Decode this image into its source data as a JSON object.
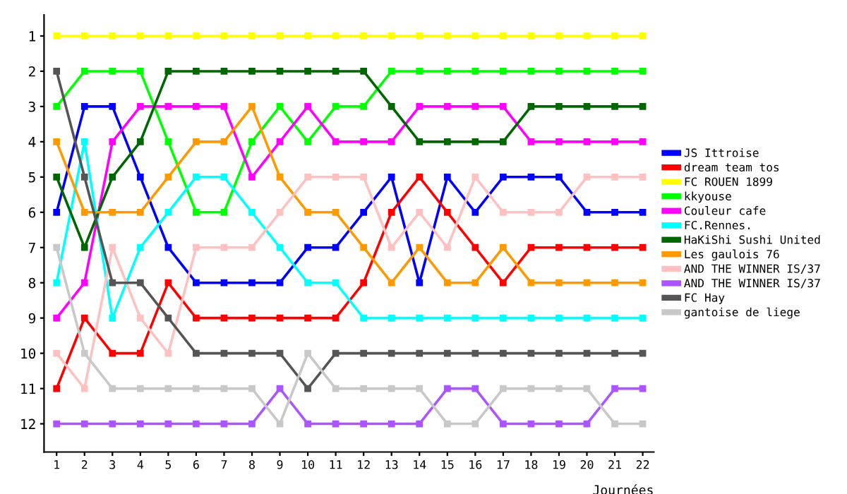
{
  "chart_data": {
    "type": "line",
    "xlabel": "Journées",
    "x": [
      1,
      2,
      3,
      4,
      5,
      6,
      7,
      8,
      9,
      10,
      11,
      12,
      13,
      14,
      15,
      16,
      17,
      18,
      19,
      20,
      21,
      22
    ],
    "xlim": [
      0.55,
      22.4
    ],
    "xticks": [
      1,
      2,
      3,
      4,
      5,
      6,
      7,
      8,
      9,
      10,
      11,
      12,
      13,
      14,
      15,
      16,
      17,
      18,
      19,
      20,
      21,
      22
    ],
    "ylim": [
      12.8,
      0.4
    ],
    "yticks": [
      1,
      2,
      3,
      4,
      5,
      6,
      7,
      8,
      9,
      10,
      11,
      12
    ],
    "marker": "square",
    "line_style": "solid",
    "grid": false,
    "legend": "right",
    "series": [
      {
        "name": "JS Ittroise",
        "color": "#0000ff",
        "values": [
          6,
          3,
          3,
          5,
          7,
          8,
          8,
          8,
          8,
          7,
          7,
          6,
          5,
          8,
          5,
          6,
          5,
          5,
          5,
          6,
          6,
          6
        ]
      },
      {
        "name": "dream team tos",
        "color": "#ff0000",
        "values": [
          11,
          9,
          10,
          10,
          8,
          9,
          9,
          9,
          9,
          9,
          9,
          8,
          6,
          5,
          6,
          7,
          8,
          7,
          7,
          7,
          7,
          7
        ]
      },
      {
        "name": "FC ROUEN 1899",
        "color": "#ffff00",
        "values": [
          1,
          1,
          1,
          1,
          1,
          1,
          1,
          1,
          1,
          1,
          1,
          1,
          1,
          1,
          1,
          1,
          1,
          1,
          1,
          1,
          1,
          1
        ]
      },
      {
        "name": "kkyouse",
        "color": "#00ff00",
        "values": [
          3,
          2,
          2,
          2,
          4,
          6,
          6,
          4,
          3,
          4,
          3,
          3,
          2,
          2,
          2,
          2,
          2,
          2,
          2,
          2,
          2,
          2
        ]
      },
      {
        "name": "Couleur cafe",
        "color": "#ff00ff",
        "values": [
          9,
          8,
          4,
          3,
          3,
          3,
          3,
          5,
          4,
          3,
          4,
          4,
          4,
          3,
          3,
          3,
          3,
          4,
          4,
          4,
          4,
          4
        ]
      },
      {
        "name": "FC.Rennes.",
        "color": "#00ffff",
        "values": [
          8,
          4,
          9,
          7,
          6,
          5,
          5,
          6,
          7,
          8,
          8,
          9,
          9,
          9,
          9,
          9,
          9,
          9,
          9,
          9,
          9,
          9
        ]
      },
      {
        "name": "HaKiShi Sushi United",
        "color": "#006600",
        "values": [
          5,
          7,
          5,
          4,
          2,
          2,
          2,
          2,
          2,
          2,
          2,
          2,
          3,
          4,
          4,
          4,
          4,
          3,
          3,
          3,
          3,
          3
        ]
      },
      {
        "name": "Les gaulois 76",
        "color": "#ff9900",
        "values": [
          4,
          6,
          6,
          6,
          5,
          4,
          4,
          3,
          5,
          6,
          6,
          7,
          8,
          7,
          8,
          8,
          7,
          8,
          8,
          8,
          8,
          8
        ]
      },
      {
        "name": "AND THE WINNER IS/37",
        "color": "#ffc0c0",
        "values": [
          10,
          11,
          7,
          9,
          10,
          7,
          7,
          7,
          6,
          5,
          5,
          5,
          7,
          6,
          7,
          5,
          6,
          6,
          6,
          5,
          5,
          5
        ]
      },
      {
        "name": "AND THE WINNER IS/37",
        "color": "#aa55ff",
        "values": [
          12,
          12,
          12,
          12,
          12,
          12,
          12,
          12,
          11,
          12,
          12,
          12,
          12,
          12,
          11,
          11,
          12,
          12,
          12,
          12,
          11,
          11
        ]
      },
      {
        "name": "FC Hay",
        "color": "#555555",
        "values": [
          2,
          5,
          8,
          8,
          9,
          10,
          10,
          10,
          10,
          11,
          10,
          10,
          10,
          10,
          10,
          10,
          10,
          10,
          10,
          10,
          10,
          10
        ]
      },
      {
        "name": "gantoise de liege",
        "color": "#c8c8c8",
        "values": [
          7,
          10,
          11,
          11,
          11,
          11,
          11,
          11,
          12,
          10,
          11,
          11,
          11,
          11,
          12,
          12,
          11,
          11,
          11,
          11,
          12,
          12
        ]
      }
    ]
  }
}
